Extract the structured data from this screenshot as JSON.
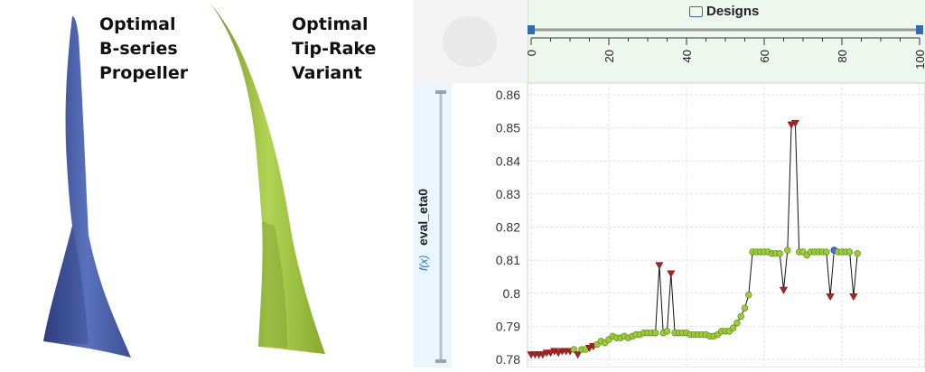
{
  "labels": {
    "left": "Optimal\nB-series\nPropeller",
    "right": "Optimal\nTip-Rake\nVariant"
  },
  "colors": {
    "blade_blue": "#4a5fa6",
    "blade_green": "#9cc23d",
    "feasible_point": "#9acd32",
    "infeasible_point": "#b22222",
    "selected_point": "#4169e1"
  },
  "designs_axis": {
    "title": "Designs",
    "ticks": [
      "0",
      "20",
      "40",
      "60",
      "80",
      "100"
    ],
    "range": [
      0,
      100
    ]
  },
  "chart_data": {
    "type": "line",
    "ylabel": "eval_eta0",
    "ylabel_prefix": "f(x)",
    "ylim": [
      0.78,
      0.86
    ],
    "yticks": [
      "0.78",
      "0.79",
      "0.8",
      "0.81",
      "0.82",
      "0.83",
      "0.84",
      "0.85",
      "0.86"
    ],
    "xlim": [
      0,
      100
    ],
    "grid": true,
    "points": [
      {
        "x": 0,
        "y": 0.7815,
        "s": "infeasible"
      },
      {
        "x": 1,
        "y": 0.7815,
        "s": "infeasible"
      },
      {
        "x": 2,
        "y": 0.7815,
        "s": "infeasible"
      },
      {
        "x": 3,
        "y": 0.7815,
        "s": "infeasible"
      },
      {
        "x": 4,
        "y": 0.782,
        "s": "infeasible"
      },
      {
        "x": 5,
        "y": 0.782,
        "s": "infeasible"
      },
      {
        "x": 6,
        "y": 0.7825,
        "s": "infeasible"
      },
      {
        "x": 7,
        "y": 0.782,
        "s": "infeasible"
      },
      {
        "x": 8,
        "y": 0.7825,
        "s": "infeasible"
      },
      {
        "x": 9,
        "y": 0.7825,
        "s": "infeasible"
      },
      {
        "x": 10,
        "y": 0.7825,
        "s": "infeasible"
      },
      {
        "x": 11,
        "y": 0.783,
        "s": "feasible"
      },
      {
        "x": 12,
        "y": 0.7815,
        "s": "infeasible"
      },
      {
        "x": 13,
        "y": 0.783,
        "s": "feasible"
      },
      {
        "x": 14,
        "y": 0.783,
        "s": "feasible"
      },
      {
        "x": 15,
        "y": 0.7835,
        "s": "infeasible"
      },
      {
        "x": 16,
        "y": 0.784,
        "s": "infeasible"
      },
      {
        "x": 17,
        "y": 0.7845,
        "s": "feasible"
      },
      {
        "x": 18,
        "y": 0.7855,
        "s": "feasible"
      },
      {
        "x": 19,
        "y": 0.785,
        "s": "feasible"
      },
      {
        "x": 20,
        "y": 0.786,
        "s": "feasible"
      },
      {
        "x": 21,
        "y": 0.787,
        "s": "feasible"
      },
      {
        "x": 22,
        "y": 0.7865,
        "s": "feasible"
      },
      {
        "x": 23,
        "y": 0.7865,
        "s": "feasible"
      },
      {
        "x": 24,
        "y": 0.787,
        "s": "feasible"
      },
      {
        "x": 25,
        "y": 0.7865,
        "s": "feasible"
      },
      {
        "x": 26,
        "y": 0.787,
        "s": "feasible"
      },
      {
        "x": 27,
        "y": 0.7875,
        "s": "feasible"
      },
      {
        "x": 28,
        "y": 0.7875,
        "s": "feasible"
      },
      {
        "x": 29,
        "y": 0.788,
        "s": "feasible"
      },
      {
        "x": 30,
        "y": 0.788,
        "s": "feasible"
      },
      {
        "x": 31,
        "y": 0.788,
        "s": "feasible"
      },
      {
        "x": 32,
        "y": 0.788,
        "s": "feasible"
      },
      {
        "x": 33,
        "y": 0.8085,
        "s": "infeasible"
      },
      {
        "x": 34,
        "y": 0.788,
        "s": "feasible"
      },
      {
        "x": 35,
        "y": 0.7885,
        "s": "feasible"
      },
      {
        "x": 36,
        "y": 0.806,
        "s": "infeasible"
      },
      {
        "x": 37,
        "y": 0.788,
        "s": "feasible"
      },
      {
        "x": 38,
        "y": 0.788,
        "s": "feasible"
      },
      {
        "x": 39,
        "y": 0.788,
        "s": "feasible"
      },
      {
        "x": 40,
        "y": 0.788,
        "s": "feasible"
      },
      {
        "x": 41,
        "y": 0.7875,
        "s": "feasible"
      },
      {
        "x": 42,
        "y": 0.7875,
        "s": "feasible"
      },
      {
        "x": 43,
        "y": 0.7875,
        "s": "feasible"
      },
      {
        "x": 44,
        "y": 0.7875,
        "s": "feasible"
      },
      {
        "x": 45,
        "y": 0.7875,
        "s": "feasible"
      },
      {
        "x": 46,
        "y": 0.787,
        "s": "feasible"
      },
      {
        "x": 47,
        "y": 0.787,
        "s": "feasible"
      },
      {
        "x": 48,
        "y": 0.7875,
        "s": "feasible"
      },
      {
        "x": 49,
        "y": 0.7885,
        "s": "feasible"
      },
      {
        "x": 50,
        "y": 0.7885,
        "s": "feasible"
      },
      {
        "x": 51,
        "y": 0.7885,
        "s": "feasible"
      },
      {
        "x": 52,
        "y": 0.7895,
        "s": "feasible"
      },
      {
        "x": 53,
        "y": 0.791,
        "s": "feasible"
      },
      {
        "x": 54,
        "y": 0.793,
        "s": "feasible"
      },
      {
        "x": 55,
        "y": 0.7955,
        "s": "feasible"
      },
      {
        "x": 56,
        "y": 0.7995,
        "s": "feasible"
      },
      {
        "x": 57,
        "y": 0.8125,
        "s": "feasible"
      },
      {
        "x": 58,
        "y": 0.8125,
        "s": "feasible"
      },
      {
        "x": 59,
        "y": 0.8125,
        "s": "feasible"
      },
      {
        "x": 60,
        "y": 0.8125,
        "s": "feasible"
      },
      {
        "x": 61,
        "y": 0.8125,
        "s": "feasible"
      },
      {
        "x": 62,
        "y": 0.812,
        "s": "feasible"
      },
      {
        "x": 63,
        "y": 0.812,
        "s": "feasible"
      },
      {
        "x": 64,
        "y": 0.812,
        "s": "feasible"
      },
      {
        "x": 65,
        "y": 0.801,
        "s": "infeasible"
      },
      {
        "x": 66,
        "y": 0.813,
        "s": "feasible"
      },
      {
        "x": 67,
        "y": 0.851,
        "s": "infeasible"
      },
      {
        "x": 68,
        "y": 0.8515,
        "s": "infeasible"
      },
      {
        "x": 69,
        "y": 0.8125,
        "s": "feasible"
      },
      {
        "x": 70,
        "y": 0.8125,
        "s": "feasible"
      },
      {
        "x": 71,
        "y": 0.8115,
        "s": "feasible"
      },
      {
        "x": 72,
        "y": 0.8125,
        "s": "feasible"
      },
      {
        "x": 73,
        "y": 0.8125,
        "s": "feasible"
      },
      {
        "x": 74,
        "y": 0.8125,
        "s": "feasible"
      },
      {
        "x": 75,
        "y": 0.8125,
        "s": "feasible"
      },
      {
        "x": 76,
        "y": 0.8125,
        "s": "feasible"
      },
      {
        "x": 77,
        "y": 0.799,
        "s": "infeasible"
      },
      {
        "x": 78,
        "y": 0.813,
        "s": "selected"
      },
      {
        "x": 79,
        "y": 0.8125,
        "s": "feasible"
      },
      {
        "x": 80,
        "y": 0.8125,
        "s": "feasible"
      },
      {
        "x": 81,
        "y": 0.8125,
        "s": "feasible"
      },
      {
        "x": 82,
        "y": 0.8125,
        "s": "feasible"
      },
      {
        "x": 83,
        "y": 0.799,
        "s": "infeasible"
      },
      {
        "x": 84,
        "y": 0.812,
        "s": "feasible"
      }
    ]
  }
}
